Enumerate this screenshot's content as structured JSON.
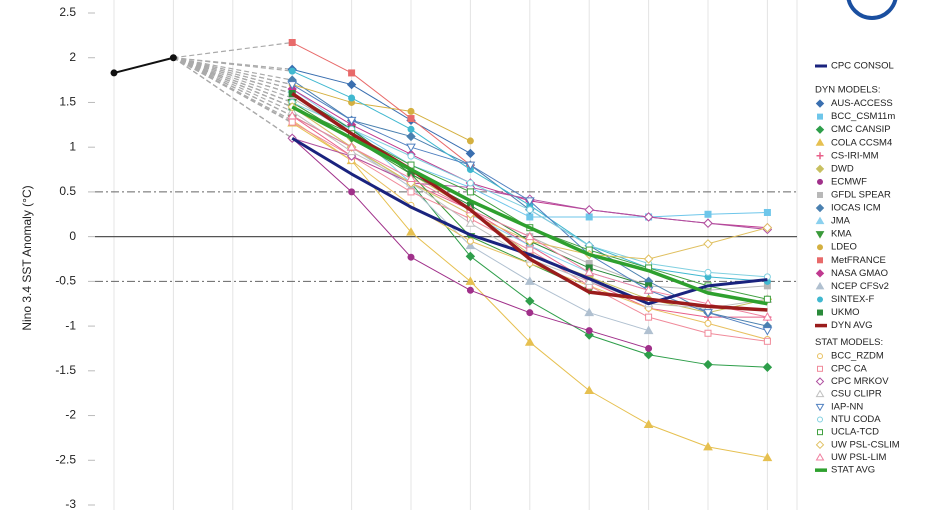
{
  "chart_data": {
    "type": "line",
    "ylabel": "Nino 3.4 SST Anomaly (°C)",
    "categories": [
      null,
      null,
      null,
      null,
      null,
      null,
      null,
      null,
      null,
      null,
      null,
      null
    ],
    "ylim": [
      -3,
      2.5
    ],
    "yticks": [
      2.5,
      2,
      1.5,
      1,
      0.5,
      0,
      -0.5,
      -1,
      -1.5,
      -2,
      -2.5,
      -3
    ],
    "grid": "x",
    "threshold_lines": [
      0.5,
      -0.5
    ],
    "legend_headers": [
      "DYN MODELS:",
      "STAT MODELS:"
    ],
    "series": [
      {
        "color": "#111111",
        "width": 2,
        "marker": "circle",
        "values": [
          1.83,
          2.0,
          null,
          null,
          null,
          null,
          null,
          null,
          null,
          null,
          null,
          null
        ]
      },
      {
        "name": "CPC CONSOL",
        "color": "#1a237e",
        "width": 3,
        "marker": "none",
        "values": [
          null,
          null,
          null,
          1.1,
          0.7,
          0.33,
          0.02,
          -0.2,
          -0.47,
          -0.75,
          -0.55,
          -0.48
        ]
      },
      {
        "name": "AUS-ACCESS",
        "color": "#3a6fb0",
        "width": 1,
        "marker": "diamond",
        "values": [
          null,
          null,
          null,
          1.87,
          1.7,
          1.3,
          0.93,
          null,
          null,
          null,
          null,
          null
        ]
      },
      {
        "name": "BCC_CSM11m",
        "color": "#6ec6ea",
        "width": 1,
        "marker": "square",
        "values": [
          null,
          null,
          null,
          1.6,
          1.2,
          0.8,
          0.55,
          0.22,
          0.22,
          0.22,
          0.25,
          0.27
        ]
      },
      {
        "name": "CMC CANSIP",
        "color": "#2e9e4a",
        "width": 1,
        "marker": "diamond",
        "values": [
          null,
          null,
          null,
          1.35,
          1.0,
          0.6,
          -0.22,
          -0.72,
          -1.1,
          -1.32,
          -1.43,
          -1.46
        ]
      },
      {
        "name": "COLA CCSM4",
        "color": "#e6c050",
        "width": 1,
        "marker": "triangle",
        "values": [
          null,
          null,
          null,
          1.27,
          0.85,
          0.05,
          -0.5,
          -1.18,
          -1.72,
          -2.1,
          -2.35,
          -2.47
        ]
      },
      {
        "name": "CS-IRI-MM",
        "color": "#e8608a",
        "width": 1,
        "marker": "plus",
        "values": [
          null,
          null,
          null,
          1.35,
          0.9,
          0.6,
          0.3,
          -0.1,
          -0.5,
          -0.8,
          -0.9,
          -0.9
        ]
      },
      {
        "name": "DWD",
        "color": "#c8c060",
        "width": 1,
        "marker": "diamond",
        "values": [
          null,
          null,
          null,
          1.5,
          1.1,
          0.7,
          0.3,
          -0.2,
          -0.45,
          -0.7,
          -0.85,
          -0.7
        ]
      },
      {
        "name": "ECMWF",
        "color": "#a0308a",
        "width": 1,
        "marker": "circle",
        "values": [
          null,
          null,
          null,
          1.1,
          0.5,
          -0.23,
          -0.6,
          -0.85,
          -1.05,
          -1.25,
          null,
          null
        ]
      },
      {
        "name": "GFDL SPEAR",
        "color": "#b8b8b8",
        "width": 1,
        "marker": "square",
        "values": [
          null,
          null,
          null,
          1.55,
          1.15,
          0.75,
          0.3,
          0.0,
          -0.3,
          -0.55,
          -0.6,
          -0.55
        ]
      },
      {
        "name": "IOCAS ICM",
        "color": "#4a80b0",
        "width": 1,
        "marker": "diamond",
        "values": [
          null,
          null,
          null,
          1.75,
          1.3,
          1.12,
          0.8,
          0.3,
          -0.1,
          -0.5,
          -0.85,
          -1.0
        ]
      },
      {
        "name": "JMA",
        "color": "#8ad0ee",
        "width": 1,
        "marker": "triangle",
        "values": [
          null,
          null,
          null,
          1.65,
          1.2,
          0.6,
          0.25,
          -0.1,
          -0.4,
          -0.6,
          null,
          null
        ]
      },
      {
        "name": "KMA",
        "color": "#3a9a3a",
        "width": 1,
        "marker": "triangle-down",
        "values": [
          null,
          null,
          null,
          1.5,
          1.1,
          0.7,
          0.0,
          -0.3,
          -0.6,
          null,
          null,
          null
        ]
      },
      {
        "name": "LDEO",
        "color": "#d4b040",
        "width": 1,
        "marker": "circle",
        "values": [
          null,
          null,
          null,
          1.7,
          1.5,
          1.4,
          1.07,
          null,
          null,
          null,
          null,
          null
        ]
      },
      {
        "name": "MetFRANCE",
        "color": "#e86a6a",
        "width": 1,
        "marker": "square",
        "values": [
          null,
          null,
          null,
          2.17,
          1.83,
          1.32,
          0.8,
          null,
          null,
          null,
          null,
          null
        ]
      },
      {
        "name": "NASA GMAO",
        "color": "#c03a90",
        "width": 1,
        "marker": "diamond",
        "values": [
          null,
          null,
          null,
          1.65,
          1.25,
          0.92,
          0.6,
          0.4,
          0.3,
          0.22,
          0.15,
          0.1
        ]
      },
      {
        "name": "NCEP CFSv2",
        "color": "#b0c0d0",
        "width": 1,
        "marker": "triangle",
        "values": [
          null,
          null,
          null,
          1.45,
          1.0,
          0.55,
          -0.1,
          -0.5,
          -0.85,
          -1.05,
          null,
          null
        ]
      },
      {
        "name": "SINTEX-F",
        "color": "#40b8d0",
        "width": 1,
        "marker": "circle",
        "values": [
          null,
          null,
          null,
          1.85,
          1.55,
          1.2,
          0.75,
          0.35,
          -0.1,
          -0.35,
          -0.45,
          -0.5
        ]
      },
      {
        "name": "UKMO",
        "color": "#2a8a3a",
        "width": 1,
        "marker": "square",
        "values": [
          null,
          null,
          null,
          1.6,
          1.2,
          0.7,
          0.35,
          -0.05,
          -0.35,
          -0.55,
          null,
          null
        ]
      },
      {
        "name": "DYN AVG",
        "color": "#9a1c1c",
        "width": 3.5,
        "marker": "none",
        "values": [
          null,
          null,
          null,
          1.6,
          1.15,
          0.75,
          0.3,
          -0.25,
          -0.62,
          -0.7,
          -0.78,
          -0.82
        ]
      },
      {
        "name": "BCC_RZDM",
        "color": "#e8c060",
        "width": 1,
        "marker": "circle",
        "hollow": true,
        "values": [
          null,
          null,
          null,
          1.3,
          0.85,
          0.35,
          -0.05,
          -0.3,
          -0.55,
          -0.8,
          -0.97,
          -1.15
        ]
      },
      {
        "name": "CPC CA",
        "color": "#f08a9a",
        "width": 1,
        "marker": "square",
        "hollow": true,
        "values": [
          null,
          null,
          null,
          1.28,
          0.9,
          0.5,
          0.2,
          -0.15,
          -0.55,
          -0.9,
          -1.08,
          -1.17
        ]
      },
      {
        "name": "CPC MRKOV",
        "color": "#b050a0",
        "width": 1,
        "marker": "diamond",
        "hollow": true,
        "values": [
          null,
          null,
          null,
          1.1,
          0.9,
          0.6,
          0.55,
          0.42,
          0.3,
          0.22,
          0.15,
          0.08
        ]
      },
      {
        "name": "CSU CLIPR",
        "color": "#c0c0c0",
        "width": 1,
        "marker": "triangle",
        "hollow": true,
        "values": [
          null,
          null,
          null,
          1.4,
          0.95,
          0.6,
          0.15,
          -0.25,
          -0.5,
          -0.75,
          -0.8,
          -0.7
        ]
      },
      {
        "name": "IAP-NN",
        "color": "#5080c0",
        "width": 1,
        "marker": "triangle-down",
        "hollow": true,
        "values": [
          null,
          null,
          null,
          1.7,
          1.3,
          1.0,
          0.8,
          0.4,
          -0.2,
          -0.6,
          -0.85,
          -1.05
        ]
      },
      {
        "name": "NTU CODA",
        "color": "#80d0e0",
        "width": 1,
        "marker": "circle",
        "hollow": true,
        "values": [
          null,
          null,
          null,
          1.5,
          1.2,
          0.9,
          0.6,
          0.3,
          -0.1,
          -0.3,
          -0.4,
          -0.45
        ]
      },
      {
        "name": "UCLA-TCD",
        "color": "#40a040",
        "width": 1,
        "marker": "square",
        "hollow": true,
        "values": [
          null,
          null,
          null,
          1.45,
          1.15,
          0.8,
          0.5,
          0.1,
          -0.15,
          -0.35,
          -0.55,
          -0.7
        ]
      },
      {
        "name": "UW PSL-CSLIM",
        "color": "#e0c060",
        "width": 1,
        "marker": "diamond",
        "hollow": true,
        "values": [
          null,
          null,
          null,
          1.45,
          1.0,
          0.6,
          0.25,
          -0.05,
          -0.2,
          -0.25,
          -0.08,
          0.1
        ]
      },
      {
        "name": "UW PSL-LIM",
        "color": "#f080a0",
        "width": 1,
        "marker": "triangle",
        "hollow": true,
        "values": [
          null,
          null,
          null,
          1.35,
          1.0,
          0.65,
          0.3,
          0.0,
          -0.4,
          -0.6,
          -0.75,
          -0.9
        ]
      },
      {
        "name": "STAT AVG",
        "color": "#2ea02e",
        "width": 3.5,
        "marker": "none",
        "values": [
          null,
          null,
          null,
          1.45,
          1.1,
          0.75,
          0.4,
          0.1,
          -0.2,
          -0.38,
          -0.63,
          -0.75
        ]
      }
    ]
  }
}
